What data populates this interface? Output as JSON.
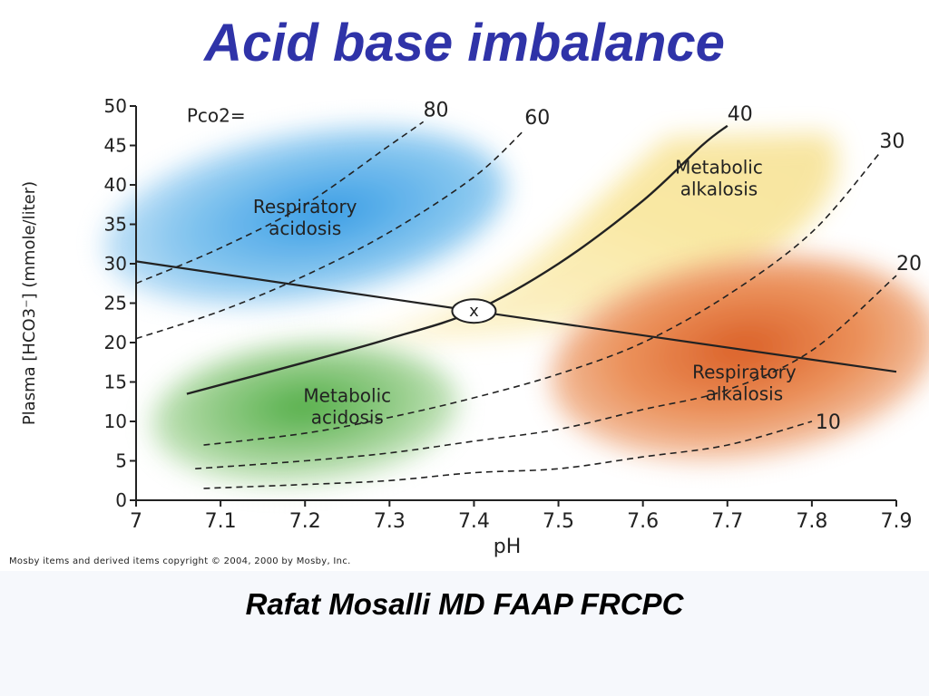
{
  "slide": {
    "title": "Acid base imbalance",
    "author": "Rafat Mosalli  MD FAAP FRCPC",
    "copyright": "Mosby items and derived items copyright © 2004, 2000 by Mosby, Inc."
  },
  "chart_data": {
    "type": "line",
    "xlabel": "pH",
    "ylabel": "Plasma [HCO3⁻] (mmole/liter)",
    "xlim": [
      7.0,
      7.9
    ],
    "ylim": [
      0,
      50
    ],
    "x_ticks": [
      "7",
      "7.1",
      "7.2",
      "7.3",
      "7.4",
      "7.5",
      "7.6",
      "7.7",
      "7.8",
      "7.9"
    ],
    "y_ticks": [
      "0",
      "5",
      "10",
      "15",
      "20",
      "25",
      "30",
      "35",
      "40",
      "45",
      "50"
    ],
    "pco2_label": "Pco2=",
    "isobars": [
      {
        "label": "80",
        "points": [
          [
            7.0,
            27.5
          ],
          [
            7.1,
            32
          ],
          [
            7.2,
            37.5
          ],
          [
            7.3,
            45
          ],
          [
            7.34,
            48
          ]
        ]
      },
      {
        "label": "60",
        "points": [
          [
            7.0,
            20.5
          ],
          [
            7.1,
            24
          ],
          [
            7.2,
            28.5
          ],
          [
            7.3,
            34
          ],
          [
            7.4,
            41
          ],
          [
            7.46,
            47
          ]
        ]
      },
      {
        "label": "40",
        "points": [
          [
            7.06,
            13.5
          ],
          [
            7.2,
            17.5
          ],
          [
            7.3,
            20.5
          ],
          [
            7.4,
            24
          ],
          [
            7.5,
            30
          ],
          [
            7.6,
            38
          ],
          [
            7.67,
            45
          ],
          [
            7.7,
            47.5
          ]
        ]
      },
      {
        "label": "30",
        "points": [
          [
            7.08,
            7
          ],
          [
            7.2,
            8.5
          ],
          [
            7.3,
            10.5
          ],
          [
            7.4,
            13
          ],
          [
            7.5,
            16
          ],
          [
            7.6,
            20
          ],
          [
            7.7,
            26
          ],
          [
            7.8,
            34
          ],
          [
            7.88,
            44
          ]
        ]
      },
      {
        "label": "20",
        "points": [
          [
            7.07,
            4
          ],
          [
            7.2,
            5
          ],
          [
            7.3,
            6
          ],
          [
            7.4,
            7.5
          ],
          [
            7.5,
            9
          ],
          [
            7.6,
            11.5
          ],
          [
            7.7,
            14
          ],
          [
            7.8,
            19
          ],
          [
            7.9,
            28.5
          ]
        ]
      },
      {
        "label": "10",
        "points": [
          [
            7.08,
            1.5
          ],
          [
            7.2,
            2
          ],
          [
            7.3,
            2.5
          ],
          [
            7.4,
            3.5
          ],
          [
            7.5,
            4
          ],
          [
            7.6,
            5.5
          ],
          [
            7.7,
            7
          ],
          [
            7.8,
            10
          ]
        ]
      }
    ],
    "buffer_line": {
      "points": [
        [
          7.0,
          30.3
        ],
        [
          7.4,
          24
        ],
        [
          7.9,
          16.3
        ]
      ]
    },
    "normal_point": {
      "x": 7.4,
      "y": 24,
      "label": "x"
    },
    "regions": [
      {
        "name": "Respiratory acidosis",
        "label_line1": "Respiratory",
        "label_line2": "acidosis",
        "color": "#3fa3e6",
        "center": [
          7.2,
          36
        ],
        "label_at": [
          7.2,
          36
        ]
      },
      {
        "name": "Metabolic alkalosis",
        "label_line1": "Metabolic",
        "label_line2": "alkalosis",
        "color": "#f8e7a4",
        "center": [
          7.63,
          33
        ],
        "label_at": [
          7.69,
          41
        ]
      },
      {
        "name": "Metabolic acidosis",
        "label_line1": "Metabolic",
        "label_line2": "acidosis",
        "color": "#4fb043",
        "center": [
          7.2,
          11
        ],
        "label_at": [
          7.25,
          12
        ]
      },
      {
        "name": "Respiratory alkalosis",
        "label_line1": "Respiratory",
        "label_line2": "alkalosis",
        "color": "#e06a24",
        "center": [
          7.72,
          18
        ],
        "label_at": [
          7.72,
          15
        ]
      }
    ]
  }
}
